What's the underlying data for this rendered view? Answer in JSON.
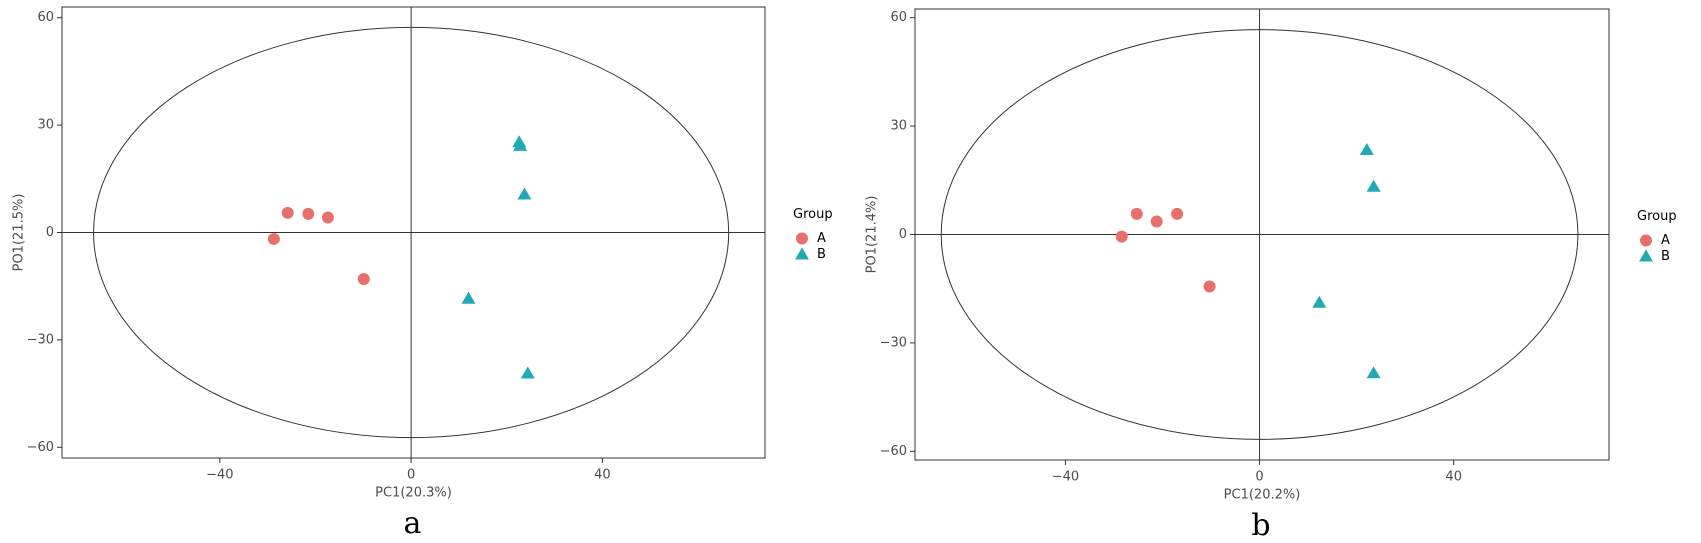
{
  "chart_data": [
    {
      "type": "scatter",
      "caption": "a",
      "x_label": "PC1(20.3%)",
      "y_label": "PO1(21.5%)",
      "legend_title": "Group",
      "xlim": [
        -73,
        74
      ],
      "ylim": [
        -63,
        63
      ],
      "xticks": [
        {
          "value": -40,
          "label": "−40"
        },
        0,
        40
      ],
      "yticks": [
        {
          "value": -60,
          "label": "−60"
        },
        {
          "value": -30,
          "label": "−30"
        },
        0,
        30,
        60
      ],
      "ellipse": {
        "rx": 66.4,
        "ry": 57.3
      },
      "series": [
        {
          "name": "A",
          "color": "#e8706a",
          "marker": "circle",
          "x": [
            -25.8,
            -21.5,
            -17.4,
            -28.7,
            -9.9
          ],
          "values": [
            5.5,
            5.2,
            4.2,
            -1.8,
            -13
          ]
        },
        {
          "name": "B",
          "color": "#23a9b3",
          "marker": "triangle",
          "x": [
            22.6,
            22.8,
            23.7,
            12,
            24.4
          ],
          "values": [
            25.2,
            24.2,
            10.6,
            -18.5,
            -39.4
          ]
        }
      ]
    },
    {
      "type": "scatter",
      "caption": "b",
      "x_label": "PC1(20.2%)",
      "y_label": "PO1(21.4%)",
      "legend_title": "Group",
      "xlim": [
        -71,
        72
      ],
      "ylim": [
        -62.4,
        62.4
      ],
      "xticks": [
        {
          "value": -40,
          "label": "−40"
        },
        0,
        40
      ],
      "yticks": [
        {
          "value": -60,
          "label": "−60"
        },
        {
          "value": -30,
          "label": "−30"
        },
        0,
        30,
        60
      ],
      "ellipse": {
        "rx": 65.6,
        "ry": 56.7
      },
      "series": [
        {
          "name": "A",
          "color": "#e8706a",
          "marker": "circle",
          "x": [
            -25.3,
            -21.2,
            -17,
            -28.4,
            -10.3
          ],
          "values": [
            5.7,
            3.6,
            5.7,
            -0.6,
            -14.4
          ]
        },
        {
          "name": "B",
          "color": "#23a9b3",
          "marker": "triangle",
          "x": [
            22.1,
            23.5,
            12.3,
            23.5
          ],
          "values": [
            23.4,
            13.2,
            -18.9,
            -38.4
          ]
        }
      ]
    }
  ]
}
